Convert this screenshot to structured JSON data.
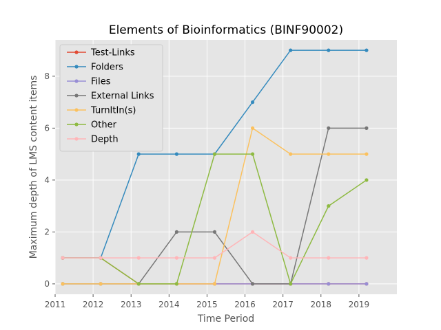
{
  "chart_data": {
    "type": "line",
    "title": "Elements of Bioinformatics (BINF90002)",
    "xlabel": "Time Period",
    "ylabel": "Maximum depth of LMS content items",
    "xlim": [
      2011,
      2020
    ],
    "ylim": [
      -0.4,
      9.4
    ],
    "x_ticks": [
      "2011",
      "2012",
      "2013",
      "2014",
      "2015",
      "2016",
      "2017",
      "2018",
      "2019"
    ],
    "y_ticks": [
      "0",
      "2",
      "4",
      "6",
      "8"
    ],
    "grid": true,
    "legend_position": "upper-left",
    "x": [
      2011.2,
      2012.2,
      2013.2,
      2014.2,
      2015.2,
      2016.2,
      2017.2,
      2018.2,
      2019.2
    ],
    "series": [
      {
        "name": "Test-Links",
        "color": "#E24A33",
        "values": [
          1,
          1,
          0,
          0,
          0,
          0,
          0,
          0,
          0
        ]
      },
      {
        "name": "Folders",
        "color": "#348ABD",
        "values": [
          1,
          1,
          5,
          5,
          5,
          7,
          9,
          9,
          9
        ]
      },
      {
        "name": "Files",
        "color": "#988ED5",
        "values": [
          0,
          0,
          0,
          0,
          0,
          0,
          0,
          0,
          0
        ]
      },
      {
        "name": "External Links",
        "color": "#777777",
        "values": [
          0,
          0,
          0,
          2,
          2,
          0,
          0,
          6,
          6
        ]
      },
      {
        "name": "TurnItIn(s)",
        "color": "#FBC15E",
        "values": [
          0,
          0,
          0,
          0,
          0,
          6,
          5,
          5,
          5
        ]
      },
      {
        "name": "Other",
        "color": "#8EBA42",
        "values": [
          1,
          1,
          0,
          0,
          5,
          5,
          0,
          3,
          4
        ]
      },
      {
        "name": "Depth",
        "color": "#FFB5B8",
        "values": [
          1,
          1,
          1,
          1,
          1,
          2,
          1,
          1,
          1
        ]
      }
    ]
  }
}
